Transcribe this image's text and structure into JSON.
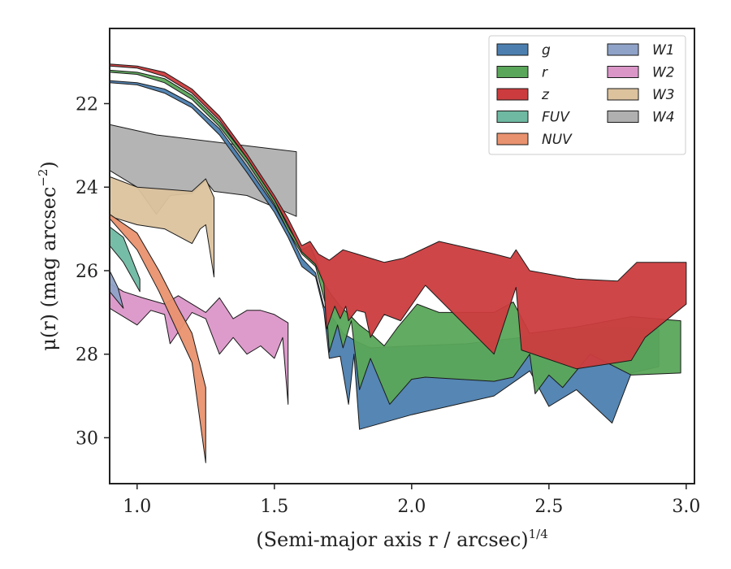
{
  "chart_data": {
    "type": "area",
    "xlabel": "(Semi-major axis r / arcsec)",
    "xlabel_sup": "1/4",
    "ylabel": "μ(r) (mag arcsec",
    "ylabel_sup": "−2",
    "ylabel_close": ")",
    "xlim": [
      0.9,
      3.03
    ],
    "ylim": [
      31.1,
      20.2
    ],
    "y_inverted": true,
    "x_ticks": [
      {
        "v": 1.0,
        "label": "1.0"
      },
      {
        "v": 1.5,
        "label": "1.5"
      },
      {
        "v": 2.0,
        "label": "2.0"
      },
      {
        "v": 2.5,
        "label": "2.5"
      },
      {
        "v": 3.0,
        "label": "3.0"
      }
    ],
    "y_ticks": [
      {
        "v": 22,
        "label": "22"
      },
      {
        "v": 24,
        "label": "24"
      },
      {
        "v": 26,
        "label": "26"
      },
      {
        "v": 28,
        "label": "28"
      },
      {
        "v": 30,
        "label": "30"
      }
    ],
    "grid": false,
    "legend_position": "top-right",
    "legend_columns": 2,
    "series": [
      {
        "name": "W4",
        "color": "#b0b0b0",
        "upper": [
          [
            0.9,
            22.5
          ],
          [
            1.07,
            22.75
          ],
          [
            1.58,
            23.15
          ]
        ],
        "lower": [
          [
            0.9,
            23.6
          ],
          [
            1.0,
            24.0
          ],
          [
            1.07,
            24.65
          ],
          [
            1.12,
            24.2
          ],
          [
            1.2,
            24.15
          ],
          [
            1.25,
            23.85
          ],
          [
            1.28,
            24.1
          ],
          [
            1.4,
            24.2
          ],
          [
            1.58,
            24.7
          ]
        ]
      },
      {
        "name": "W3",
        "color": "#dcc39e",
        "upper": [
          [
            0.9,
            23.75
          ],
          [
            1.0,
            24.0
          ],
          [
            1.1,
            24.05
          ],
          [
            1.2,
            24.1
          ],
          [
            1.25,
            23.8
          ],
          [
            1.28,
            24.25
          ]
        ],
        "lower": [
          [
            0.9,
            24.7
          ],
          [
            1.0,
            24.9
          ],
          [
            1.1,
            25.0
          ],
          [
            1.2,
            25.35
          ],
          [
            1.23,
            25.0
          ],
          [
            1.25,
            24.9
          ],
          [
            1.28,
            26.15
          ]
        ]
      },
      {
        "name": "W2",
        "color": "#db96c8",
        "upper": [
          [
            0.9,
            26.3
          ],
          [
            0.95,
            26.5
          ],
          [
            1.02,
            26.65
          ],
          [
            1.1,
            26.8
          ],
          [
            1.15,
            26.6
          ],
          [
            1.25,
            27.0
          ],
          [
            1.3,
            26.65
          ],
          [
            1.35,
            27.15
          ],
          [
            1.4,
            26.95
          ],
          [
            1.45,
            26.95
          ],
          [
            1.5,
            27.05
          ],
          [
            1.55,
            27.25
          ]
        ],
        "lower": [
          [
            0.9,
            26.9
          ],
          [
            1.0,
            27.3
          ],
          [
            1.05,
            26.95
          ],
          [
            1.1,
            27.05
          ],
          [
            1.12,
            27.75
          ],
          [
            1.2,
            27.0
          ],
          [
            1.25,
            27.15
          ],
          [
            1.3,
            28.0
          ],
          [
            1.35,
            27.6
          ],
          [
            1.4,
            28.0
          ],
          [
            1.45,
            27.8
          ],
          [
            1.5,
            28.1
          ],
          [
            1.53,
            27.6
          ],
          [
            1.55,
            29.2
          ]
        ]
      },
      {
        "name": "W1",
        "color": "#8fa2c8",
        "upper": [
          [
            0.9,
            26.0
          ],
          [
            0.93,
            26.4
          ],
          [
            0.95,
            26.9
          ]
        ],
        "lower": [
          [
            0.9,
            26.5
          ],
          [
            0.95,
            26.9
          ]
        ]
      },
      {
        "name": "FUV",
        "color": "#6fb9a2",
        "upper": [
          [
            0.9,
            24.95
          ],
          [
            0.95,
            25.2
          ],
          [
            1.01,
            26.2
          ]
        ],
        "lower": [
          [
            0.9,
            25.4
          ],
          [
            0.95,
            25.8
          ],
          [
            1.01,
            26.5
          ]
        ]
      },
      {
        "name": "NUV",
        "color": "#e9926f",
        "upper": [
          [
            0.9,
            24.65
          ],
          [
            1.0,
            25.1
          ],
          [
            1.08,
            26.0
          ],
          [
            1.15,
            26.9
          ],
          [
            1.2,
            27.5
          ],
          [
            1.25,
            28.8
          ]
        ],
        "lower": [
          [
            0.9,
            24.75
          ],
          [
            1.0,
            25.5
          ],
          [
            1.08,
            26.5
          ],
          [
            1.15,
            27.5
          ],
          [
            1.2,
            28.2
          ],
          [
            1.25,
            30.6
          ]
        ]
      },
      {
        "name": "g",
        "color": "#4c7fb0",
        "upper": [
          [
            0.9,
            21.45
          ],
          [
            1.0,
            21.5
          ],
          [
            1.1,
            21.65
          ],
          [
            1.2,
            22.0
          ],
          [
            1.3,
            22.6
          ],
          [
            1.4,
            23.5
          ],
          [
            1.5,
            24.45
          ],
          [
            1.55,
            25.05
          ],
          [
            1.6,
            25.7
          ],
          [
            1.65,
            26.05
          ],
          [
            1.68,
            26.85
          ],
          [
            1.72,
            27.2
          ],
          [
            1.75,
            27.5
          ],
          [
            1.8,
            27.7
          ],
          [
            1.85,
            27.85
          ],
          [
            2.0,
            27.8
          ],
          [
            2.2,
            27.75
          ],
          [
            2.4,
            27.6
          ],
          [
            2.5,
            27.45
          ],
          [
            2.6,
            27.4
          ],
          [
            2.75,
            27.35
          ],
          [
            2.9,
            27.4
          ]
        ],
        "lower": [
          [
            0.9,
            21.5
          ],
          [
            1.0,
            21.55
          ],
          [
            1.1,
            21.75
          ],
          [
            1.2,
            22.1
          ],
          [
            1.3,
            22.75
          ],
          [
            1.4,
            23.65
          ],
          [
            1.5,
            24.6
          ],
          [
            1.55,
            25.2
          ],
          [
            1.6,
            25.9
          ],
          [
            1.65,
            26.15
          ],
          [
            1.68,
            26.95
          ],
          [
            1.7,
            28.1
          ],
          [
            1.74,
            28.05
          ],
          [
            1.77,
            29.2
          ],
          [
            1.79,
            28.0
          ],
          [
            1.81,
            29.8
          ],
          [
            2.0,
            29.45
          ],
          [
            2.3,
            29.0
          ],
          [
            2.43,
            28.4
          ],
          [
            2.5,
            29.25
          ],
          [
            2.6,
            28.85
          ],
          [
            2.73,
            29.65
          ],
          [
            2.8,
            28.45
          ],
          [
            2.9,
            28.3
          ]
        ]
      },
      {
        "name": "r",
        "color": "#5aa65a",
        "upper": [
          [
            0.9,
            21.2
          ],
          [
            1.0,
            21.25
          ],
          [
            1.1,
            21.4
          ],
          [
            1.2,
            21.8
          ],
          [
            1.3,
            22.45
          ],
          [
            1.4,
            23.3
          ],
          [
            1.5,
            24.3
          ],
          [
            1.55,
            24.95
          ],
          [
            1.6,
            25.5
          ],
          [
            1.63,
            25.4
          ],
          [
            1.65,
            25.7
          ],
          [
            1.68,
            26.3
          ],
          [
            1.71,
            26.6
          ],
          [
            1.74,
            26.85
          ],
          [
            1.78,
            27.1
          ],
          [
            1.81,
            27.3
          ],
          [
            1.85,
            27.5
          ],
          [
            1.9,
            27.8
          ],
          [
            1.95,
            27.35
          ],
          [
            2.02,
            26.8
          ],
          [
            2.1,
            27.0
          ],
          [
            2.3,
            27.0
          ],
          [
            2.37,
            26.75
          ],
          [
            2.43,
            27.5
          ],
          [
            2.6,
            27.35
          ],
          [
            2.8,
            27.1
          ],
          [
            2.98,
            27.2
          ]
        ],
        "lower": [
          [
            0.9,
            21.25
          ],
          [
            1.0,
            21.3
          ],
          [
            1.1,
            21.5
          ],
          [
            1.2,
            21.9
          ],
          [
            1.3,
            22.55
          ],
          [
            1.4,
            23.4
          ],
          [
            1.5,
            24.4
          ],
          [
            1.55,
            25.05
          ],
          [
            1.6,
            25.6
          ],
          [
            1.65,
            25.9
          ],
          [
            1.69,
            26.9
          ],
          [
            1.7,
            27.95
          ],
          [
            1.73,
            27.3
          ],
          [
            1.75,
            27.85
          ],
          [
            1.78,
            27.2
          ],
          [
            1.81,
            28.85
          ],
          [
            1.85,
            28.1
          ],
          [
            1.92,
            29.2
          ],
          [
            2.0,
            28.6
          ],
          [
            2.05,
            28.55
          ],
          [
            2.3,
            28.65
          ],
          [
            2.37,
            28.55
          ],
          [
            2.43,
            28.0
          ],
          [
            2.45,
            28.95
          ],
          [
            2.5,
            28.5
          ],
          [
            2.55,
            28.8
          ],
          [
            2.65,
            28.0
          ],
          [
            2.8,
            28.5
          ],
          [
            2.98,
            28.45
          ]
        ]
      },
      {
        "name": "z",
        "color": "#cc3c3e",
        "upper": [
          [
            0.9,
            21.05
          ],
          [
            1.0,
            21.1
          ],
          [
            1.1,
            21.25
          ],
          [
            1.2,
            21.65
          ],
          [
            1.3,
            22.3
          ],
          [
            1.4,
            23.2
          ],
          [
            1.5,
            24.2
          ],
          [
            1.55,
            24.75
          ],
          [
            1.6,
            25.4
          ],
          [
            1.63,
            25.3
          ],
          [
            1.66,
            25.6
          ],
          [
            1.7,
            25.75
          ],
          [
            1.75,
            25.5
          ],
          [
            1.8,
            25.6
          ],
          [
            1.85,
            25.7
          ],
          [
            1.9,
            25.8
          ],
          [
            1.97,
            25.7
          ],
          [
            2.1,
            25.3
          ],
          [
            2.3,
            25.6
          ],
          [
            2.36,
            25.7
          ],
          [
            2.38,
            25.5
          ],
          [
            2.43,
            26.0
          ],
          [
            2.6,
            26.2
          ],
          [
            2.75,
            26.25
          ],
          [
            2.82,
            25.8
          ],
          [
            3.0,
            25.8
          ]
        ],
        "lower": [
          [
            0.9,
            21.1
          ],
          [
            1.0,
            21.15
          ],
          [
            1.1,
            21.35
          ],
          [
            1.2,
            21.75
          ],
          [
            1.3,
            22.4
          ],
          [
            1.4,
            23.3
          ],
          [
            1.5,
            24.3
          ],
          [
            1.55,
            24.9
          ],
          [
            1.6,
            25.55
          ],
          [
            1.65,
            25.85
          ],
          [
            1.68,
            26.3
          ],
          [
            1.69,
            27.4
          ],
          [
            1.72,
            26.85
          ],
          [
            1.74,
            27.15
          ],
          [
            1.76,
            26.85
          ],
          [
            1.77,
            27.2
          ],
          [
            1.8,
            26.95
          ],
          [
            1.83,
            27.0
          ],
          [
            1.85,
            27.6
          ],
          [
            1.9,
            27.05
          ],
          [
            1.96,
            27.2
          ],
          [
            2.05,
            26.35
          ],
          [
            2.3,
            28.0
          ],
          [
            2.38,
            26.4
          ],
          [
            2.4,
            27.9
          ],
          [
            2.6,
            28.35
          ],
          [
            2.8,
            28.15
          ],
          [
            2.85,
            27.6
          ],
          [
            3.0,
            26.8
          ]
        ]
      }
    ],
    "legend": [
      {
        "name": "g",
        "color": "#4c7fb0",
        "col": 0,
        "row": 0
      },
      {
        "name": "r",
        "color": "#5aa65a",
        "col": 0,
        "row": 1
      },
      {
        "name": "z",
        "color": "#cc3c3e",
        "col": 0,
        "row": 2
      },
      {
        "name": "FUV",
        "color": "#6fb9a2",
        "col": 0,
        "row": 3
      },
      {
        "name": "NUV",
        "color": "#e9926f",
        "col": 0,
        "row": 4
      },
      {
        "name": "W1",
        "color": "#8fa2c8",
        "col": 1,
        "row": 0
      },
      {
        "name": "W2",
        "color": "#db96c8",
        "col": 1,
        "row": 1
      },
      {
        "name": "W3",
        "color": "#dcc39e",
        "col": 1,
        "row": 2
      },
      {
        "name": "W4",
        "color": "#b0b0b0",
        "col": 1,
        "row": 3
      }
    ]
  }
}
